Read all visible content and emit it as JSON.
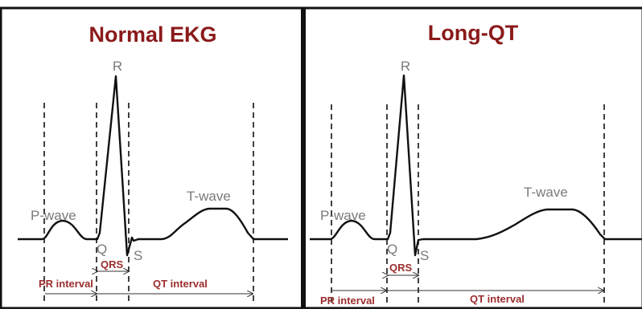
{
  "panels": [
    {
      "title": "Normal EKG",
      "labels": {
        "r": "R",
        "q": "Q",
        "s": "S",
        "p_wave": "P-wave",
        "t_wave": "T-wave",
        "qrs": "QRS",
        "pr_interval": "PR interval",
        "qt_interval": "QT interval"
      }
    },
    {
      "title": "Long-QT",
      "labels": {
        "r": "R",
        "q": "Q",
        "s": "S",
        "p_wave": "P-wave",
        "t_wave": "T-wave",
        "qrs": "QRS",
        "pr_interval": "PR interval",
        "qt_interval": "QT interval"
      }
    }
  ]
}
